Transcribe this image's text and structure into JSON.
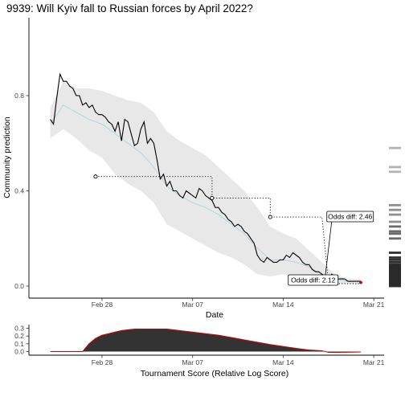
{
  "title": "9939: Will Kyiv fall to Russian forces by April 2022?",
  "chart_data": [
    {
      "type": "line",
      "title": "9939: Will Kyiv fall to Russian forces by April 2022?",
      "xlabel": "Date",
      "ylabel": "Community prediction",
      "xticks": [
        "Feb 28",
        "Mar 07",
        "Mar 14",
        "Mar 21"
      ],
      "yticks": [
        "0.0",
        "0.4",
        "0.8"
      ],
      "xlim": [
        "2022-02-23",
        "2022-03-22"
      ],
      "ylim": [
        -0.15,
        0.92
      ],
      "grid": false,
      "series": [
        {
          "role": "community prediction",
          "color": "#000000",
          "points": [
            [
              "2022-02-24T00",
              0.7
            ],
            [
              "2022-02-24T06",
              0.68
            ],
            [
              "2022-02-24T12",
              0.79
            ],
            [
              "2022-02-24T18",
              0.89
            ],
            [
              "2022-02-25T00",
              0.86
            ],
            [
              "2022-02-25T06",
              0.86
            ],
            [
              "2022-02-25T12",
              0.84
            ],
            [
              "2022-02-25T18",
              0.83
            ],
            [
              "2022-02-26T00",
              0.8
            ],
            [
              "2022-02-26T06",
              0.8
            ],
            [
              "2022-02-26T12",
              0.76
            ],
            [
              "2022-02-26T18",
              0.77
            ],
            [
              "2022-02-27T00",
              0.75
            ],
            [
              "2022-02-27T06",
              0.76
            ],
            [
              "2022-02-27T12",
              0.73
            ],
            [
              "2022-02-27T18",
              0.72
            ],
            [
              "2022-02-28T00",
              0.72
            ],
            [
              "2022-02-28T06",
              0.71
            ],
            [
              "2022-02-28T12",
              0.69
            ],
            [
              "2022-02-28T18",
              0.68
            ],
            [
              "2022-03-01T00",
              0.65
            ],
            [
              "2022-03-01T06",
              0.69
            ],
            [
              "2022-03-01T12",
              0.61
            ],
            [
              "2022-03-01T18",
              0.7
            ],
            [
              "2022-03-02T00",
              0.69
            ],
            [
              "2022-03-02T06",
              0.64
            ],
            [
              "2022-03-02T12",
              0.59
            ],
            [
              "2022-03-02T18",
              0.6
            ],
            [
              "2022-03-03T00",
              0.66
            ],
            [
              "2022-03-03T06",
              0.69
            ],
            [
              "2022-03-03T12",
              0.6
            ],
            [
              "2022-03-03T18",
              0.62
            ],
            [
              "2022-03-04T00",
              0.6
            ],
            [
              "2022-03-04T06",
              0.53
            ],
            [
              "2022-03-04T12",
              0.45
            ],
            [
              "2022-03-04T18",
              0.47
            ],
            [
              "2022-03-05T00",
              0.42
            ],
            [
              "2022-03-05T06",
              0.44
            ],
            [
              "2022-03-05T12",
              0.4
            ],
            [
              "2022-03-05T18",
              0.4
            ],
            [
              "2022-03-06T00",
              0.38
            ],
            [
              "2022-03-06T06",
              0.37
            ],
            [
              "2022-03-06T12",
              0.4
            ],
            [
              "2022-03-06T18",
              0.39
            ],
            [
              "2022-03-07T00",
              0.38
            ],
            [
              "2022-03-07T06",
              0.37
            ],
            [
              "2022-03-07T12",
              0.41
            ],
            [
              "2022-03-07T18",
              0.4
            ],
            [
              "2022-03-08T00",
              0.38
            ],
            [
              "2022-03-08T06",
              0.37
            ],
            [
              "2022-03-08T12",
              0.36
            ],
            [
              "2022-03-08T18",
              0.33
            ],
            [
              "2022-03-09T00",
              0.33
            ],
            [
              "2022-03-09T06",
              0.31
            ],
            [
              "2022-03-09T12",
              0.3
            ],
            [
              "2022-03-09T18",
              0.28
            ],
            [
              "2022-03-10T00",
              0.27
            ],
            [
              "2022-03-10T06",
              0.25
            ],
            [
              "2022-03-10T12",
              0.26
            ],
            [
              "2022-03-10T18",
              0.25
            ],
            [
              "2022-03-11T00",
              0.23
            ],
            [
              "2022-03-11T06",
              0.22
            ],
            [
              "2022-03-11T12",
              0.2
            ],
            [
              "2022-03-11T18",
              0.18
            ],
            [
              "2022-03-12T00",
              0.13
            ],
            [
              "2022-03-12T06",
              0.11
            ],
            [
              "2022-03-12T12",
              0.1
            ],
            [
              "2022-03-12T18",
              0.12
            ],
            [
              "2022-03-13T00",
              0.11
            ],
            [
              "2022-03-13T06",
              0.1
            ],
            [
              "2022-03-13T12",
              0.1
            ],
            [
              "2022-03-13T18",
              0.11
            ],
            [
              "2022-03-14T00",
              0.11
            ],
            [
              "2022-03-14T06",
              0.13
            ],
            [
              "2022-03-14T12",
              0.12
            ],
            [
              "2022-03-14T18",
              0.14
            ],
            [
              "2022-03-15T00",
              0.13
            ],
            [
              "2022-03-15T06",
              0.12
            ],
            [
              "2022-03-15T12",
              0.1
            ],
            [
              "2022-03-15T18",
              0.09
            ],
            [
              "2022-03-16T00",
              0.09
            ],
            [
              "2022-03-16T06",
              0.07
            ],
            [
              "2022-03-16T12",
              0.06
            ],
            [
              "2022-03-16T18",
              0.06
            ],
            [
              "2022-03-17T00",
              0.05
            ],
            [
              "2022-03-17T06",
              0.04
            ],
            [
              "2022-03-17T12",
              0.03
            ],
            [
              "2022-03-17T18",
              0.05
            ],
            [
              "2022-03-18T00",
              0.04
            ],
            [
              "2022-03-18T06",
              0.03
            ],
            [
              "2022-03-18T12",
              0.03
            ],
            [
              "2022-03-18T18",
              0.03
            ],
            [
              "2022-03-19T00",
              0.02
            ],
            [
              "2022-03-19T06",
              0.02
            ],
            [
              "2022-03-19T12",
              0.02
            ],
            [
              "2022-03-20T00",
              0.02
            ]
          ]
        }
      ],
      "median_line": {
        "color": "#b9d3dd",
        "points": [
          [
            "2022-02-24T00",
            0.68
          ],
          [
            "2022-02-25T00",
            0.76
          ],
          [
            "2022-02-26T00",
            0.73
          ],
          [
            "2022-02-27T00",
            0.7
          ],
          [
            "2022-02-28T00",
            0.68
          ],
          [
            "2022-03-01T00",
            0.64
          ],
          [
            "2022-03-02T00",
            0.6
          ],
          [
            "2022-03-03T00",
            0.56
          ],
          [
            "2022-03-04T00",
            0.5
          ],
          [
            "2022-03-05T00",
            0.42
          ],
          [
            "2022-03-06T00",
            0.38
          ],
          [
            "2022-03-07T00",
            0.35
          ],
          [
            "2022-03-08T00",
            0.33
          ],
          [
            "2022-03-09T00",
            0.3
          ],
          [
            "2022-03-10T00",
            0.26
          ],
          [
            "2022-03-11T00",
            0.22
          ],
          [
            "2022-03-12T00",
            0.16
          ],
          [
            "2022-03-13T00",
            0.11
          ],
          [
            "2022-03-14T00",
            0.11
          ],
          [
            "2022-03-15T00",
            0.1
          ],
          [
            "2022-03-16T00",
            0.08
          ],
          [
            "2022-03-17T00",
            0.05
          ],
          [
            "2022-03-18T00",
            0.03
          ],
          [
            "2022-03-19T00",
            0.02
          ],
          [
            "2022-03-20T00",
            0.02
          ]
        ]
      },
      "uncertainty_band": {
        "color": "#e8e8e8",
        "points": [
          [
            "2022-02-24T00",
            0.62,
            0.75
          ],
          [
            "2022-02-25T00",
            0.66,
            0.86
          ],
          [
            "2022-02-26T00",
            0.62,
            0.83
          ],
          [
            "2022-02-27T00",
            0.57,
            0.83
          ],
          [
            "2022-02-28T00",
            0.54,
            0.82
          ],
          [
            "2022-03-01T00",
            0.47,
            0.8
          ],
          [
            "2022-03-02T00",
            0.43,
            0.78
          ],
          [
            "2022-03-03T00",
            0.4,
            0.77
          ],
          [
            "2022-03-04T00",
            0.35,
            0.73
          ],
          [
            "2022-03-05T00",
            0.26,
            0.65
          ],
          [
            "2022-03-06T00",
            0.23,
            0.61
          ],
          [
            "2022-03-07T00",
            0.2,
            0.58
          ],
          [
            "2022-03-08T00",
            0.17,
            0.55
          ],
          [
            "2022-03-09T00",
            0.14,
            0.5
          ],
          [
            "2022-03-10T00",
            0.12,
            0.45
          ],
          [
            "2022-03-11T00",
            0.09,
            0.4
          ],
          [
            "2022-03-12T00",
            0.05,
            0.33
          ],
          [
            "2022-03-13T00",
            0.04,
            0.25
          ],
          [
            "2022-03-14T00",
            0.05,
            0.22
          ],
          [
            "2022-03-15T00",
            0.04,
            0.2
          ],
          [
            "2022-03-16T00",
            0.03,
            0.15
          ],
          [
            "2022-03-17T00",
            0.02,
            0.1
          ],
          [
            "2022-03-18T00",
            0.01,
            0.05
          ],
          [
            "2022-03-19T00",
            0.01,
            0.03
          ],
          [
            "2022-03-20T00",
            0.01,
            0.03
          ]
        ]
      },
      "forecast_steps": {
        "points": [
          [
            "2022-02-27T12",
            0.46
          ],
          [
            "2022-03-08T12",
            0.46
          ],
          [
            "2022-03-08T12",
            0.37
          ],
          [
            "2022-03-13T00",
            0.37
          ],
          [
            "2022-03-13T00",
            0.29
          ],
          [
            "2022-03-17T00",
            0.29
          ],
          [
            "2022-03-17T12",
            0.01
          ],
          [
            "2022-03-20T00",
            0.01
          ]
        ],
        "markers": [
          [
            "2022-02-27T12",
            0.46
          ],
          [
            "2022-03-08T12",
            0.37
          ],
          [
            "2022-03-13T00",
            0.29
          ],
          [
            "2022-03-17T12",
            0.01
          ]
        ]
      },
      "final_point": {
        "date": "2022-03-20T00",
        "value": 0.015,
        "color": "#cc0000"
      },
      "highlight_segment": {
        "date": "2022-03-17T06",
        "from": 0.04,
        "to": 0.02,
        "color": "#cc0000"
      },
      "annotations": [
        {
          "text": "Odds diff: 2.46",
          "date": "2022-03-17T06",
          "value": 0.04
        },
        {
          "text": "Odds diff: 2.12",
          "date": "2022-03-17T12",
          "value": 0.01
        }
      ],
      "side_histogram": {
        "values": [
          0.58,
          0.5,
          0.48,
          0.34,
          0.32,
          0.3,
          0.27,
          0.25,
          0.23,
          0.22,
          0.2,
          0.14,
          0.12,
          0.11,
          0.1,
          0.09,
          0.08,
          0.07,
          0.06,
          0.05,
          0.04,
          0.03,
          0.02,
          0.01,
          0.0
        ]
      }
    },
    {
      "type": "area",
      "xlabel": "Tournament Score (Relative Log Score)",
      "xticks": [
        "Feb 28",
        "Mar 07",
        "Mar 14",
        "Mar 21"
      ],
      "yticks": [
        "0.0",
        "0.1",
        "0.2",
        "0.3"
      ],
      "ylim": [
        -0.02,
        0.32
      ],
      "fill_color": "#333333",
      "line_color": "#cc0000",
      "points": [
        [
          "2022-02-24T00",
          0.0
        ],
        [
          "2022-02-26T12",
          0.0
        ],
        [
          "2022-02-27T00",
          0.1
        ],
        [
          "2022-02-27T12",
          0.17
        ],
        [
          "2022-02-28T00",
          0.21
        ],
        [
          "2022-02-28T12",
          0.23
        ],
        [
          "2022-03-01T00",
          0.25
        ],
        [
          "2022-03-01T12",
          0.27
        ],
        [
          "2022-03-02T00",
          0.28
        ],
        [
          "2022-03-02T12",
          0.29
        ],
        [
          "2022-03-03T00",
          0.29
        ],
        [
          "2022-03-04T00",
          0.29
        ],
        [
          "2022-03-05T00",
          0.29
        ],
        [
          "2022-03-05T12",
          0.28
        ],
        [
          "2022-03-06T00",
          0.27
        ],
        [
          "2022-03-06T12",
          0.26
        ],
        [
          "2022-03-07T00",
          0.25
        ],
        [
          "2022-03-08T00",
          0.23
        ],
        [
          "2022-03-09T00",
          0.21
        ],
        [
          "2022-03-10T00",
          0.18
        ],
        [
          "2022-03-11T00",
          0.15
        ],
        [
          "2022-03-12T00",
          0.12
        ],
        [
          "2022-03-13T00",
          0.09
        ],
        [
          "2022-03-14T00",
          0.065
        ],
        [
          "2022-03-15T00",
          0.04
        ],
        [
          "2022-03-16T00",
          0.02
        ],
        [
          "2022-03-17T00",
          0.01
        ],
        [
          "2022-03-17T12",
          -0.01
        ],
        [
          "2022-03-18T00",
          -0.01
        ],
        [
          "2022-03-19T00",
          -0.008
        ],
        [
          "2022-03-20T00",
          -0.005
        ]
      ]
    }
  ]
}
